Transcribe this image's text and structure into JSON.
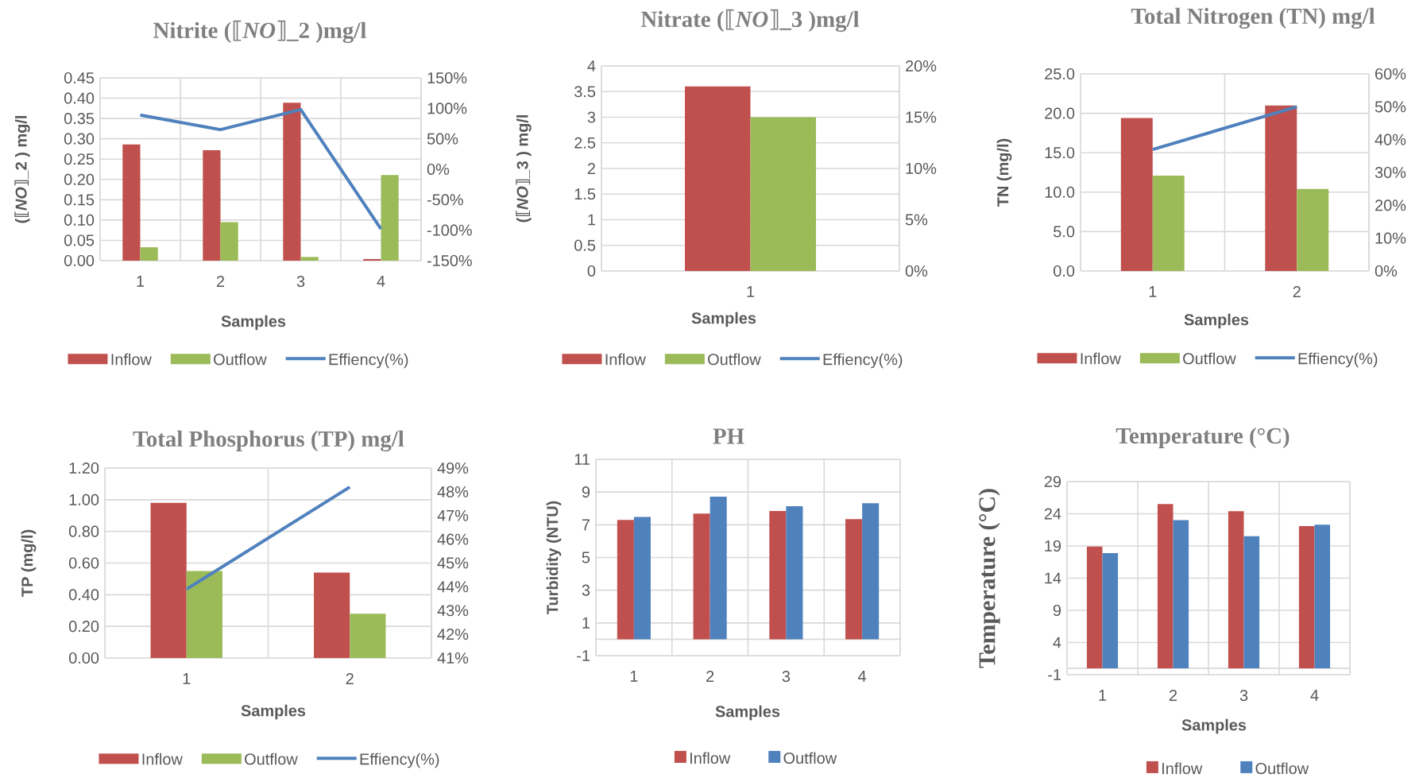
{
  "chart_data": [
    {
      "type": "bar",
      "title": "Nitrite (⟦*NO*⟧_2 )mg/l",
      "xlabel": "Samples",
      "ylabel": "(⟦*NO*⟧_2 ) mg/l",
      "categories": [
        "1",
        "2",
        "3",
        "4"
      ],
      "series": [
        {
          "name": "Inflow",
          "color": "#c0504d",
          "values": [
            0.286,
            0.272,
            0.389,
            0.004
          ]
        },
        {
          "name": "Outflow",
          "color": "#9bbb59",
          "values": [
            0.033,
            0.095,
            0.009,
            0.211
          ]
        },
        {
          "name": "Effiency(%)",
          "type": "line",
          "axis": "y2",
          "color": "#4f81bd",
          "values": [
            89,
            65,
            98,
            -98
          ]
        }
      ],
      "ylim": [
        0,
        0.45
      ],
      "yticks": [
        {
          "value": 0,
          "label": "0.00"
        },
        {
          "value": 0.05,
          "label": "0.05"
        },
        {
          "value": 0.1,
          "label": "0.10"
        },
        {
          "value": 0.15,
          "label": "0.15"
        },
        {
          "value": 0.2,
          "label": "0.20"
        },
        {
          "value": 0.25,
          "label": "0.25"
        },
        {
          "value": 0.3,
          "label": "0.30"
        },
        {
          "value": 0.35,
          "label": "0.35"
        },
        {
          "value": 0.4,
          "label": "0.40"
        },
        {
          "value": 0.45,
          "label": "0.45"
        }
      ],
      "y2lim": [
        -150,
        150
      ],
      "y2ticks": [
        {
          "value": -150,
          "label": "-150%"
        },
        {
          "value": -100,
          "label": "-100%"
        },
        {
          "value": -50,
          "label": "-50%"
        },
        {
          "value": 0,
          "label": "0%"
        },
        {
          "value": 50,
          "label": "50%"
        },
        {
          "value": 100,
          "label": "100%"
        },
        {
          "value": 150,
          "label": "150%"
        }
      ],
      "grid": true,
      "legend": "bottom"
    },
    {
      "type": "bar",
      "title": "Nitrate (⟦*NO*⟧_3 )mg/l",
      "xlabel": "Samples",
      "ylabel": "(⟦*NO*⟧_3 ) mg/l",
      "categories": [
        "1"
      ],
      "series": [
        {
          "name": "Inflow",
          "color": "#c0504d",
          "values": [
            3.6
          ]
        },
        {
          "name": "Outflow",
          "color": "#9bbb59",
          "values": [
            3.0
          ]
        },
        {
          "name": "Effiency(%)",
          "type": "line",
          "axis": "y2",
          "color": "#4f81bd",
          "values": [
            null
          ]
        }
      ],
      "ylim": [
        0,
        4
      ],
      "yticks": [
        0,
        0.5,
        1,
        1.5,
        2,
        2.5,
        3,
        3.5,
        4
      ],
      "y2lim": [
        0,
        20
      ],
      "y2ticks": [
        {
          "value": 0,
          "label": "0%"
        },
        {
          "value": 5,
          "label": "5%"
        },
        {
          "value": 10,
          "label": "10%"
        },
        {
          "value": 15,
          "label": "15%"
        },
        {
          "value": 20,
          "label": "20%"
        }
      ],
      "grid": true,
      "legend": "bottom"
    },
    {
      "type": "bar",
      "title": "Total Nitrogen (TN) mg/l",
      "xlabel": "Samples",
      "ylabel": "TN (mg/l)",
      "categories": [
        "1",
        "2"
      ],
      "series": [
        {
          "name": "Inflow",
          "color": "#c0504d",
          "values": [
            19.4,
            21.0
          ]
        },
        {
          "name": "Outflow",
          "color": "#9bbb59",
          "values": [
            12.1,
            10.4
          ]
        },
        {
          "name": "Effiency(%)",
          "type": "line",
          "axis": "y2",
          "color": "#4f81bd",
          "values": [
            37,
            50
          ]
        }
      ],
      "ylim": [
        0,
        25
      ],
      "yticks": [
        {
          "value": 0,
          "label": "0.0"
        },
        {
          "value": 5,
          "label": "5.0"
        },
        {
          "value": 10,
          "label": "10.0"
        },
        {
          "value": 15,
          "label": "15.0"
        },
        {
          "value": 20,
          "label": "20.0"
        },
        {
          "value": 25,
          "label": "25.0"
        }
      ],
      "y2lim": [
        0,
        60
      ],
      "y2ticks": [
        {
          "value": 0,
          "label": "0%"
        },
        {
          "value": 10,
          "label": "10%"
        },
        {
          "value": 20,
          "label": "20%"
        },
        {
          "value": 30,
          "label": "30%"
        },
        {
          "value": 40,
          "label": "40%"
        },
        {
          "value": 50,
          "label": "50%"
        },
        {
          "value": 60,
          "label": "60%"
        }
      ],
      "grid": true,
      "legend": "bottom"
    },
    {
      "type": "bar",
      "title": "Total Phosphorus (TP) mg/l",
      "xlabel": "Samples",
      "ylabel": "TP (mg/l)",
      "categories": [
        "1",
        "2"
      ],
      "series": [
        {
          "name": "Inflow",
          "color": "#c0504d",
          "values": [
            0.98,
            0.54
          ]
        },
        {
          "name": "Outflow",
          "color": "#9bbb59",
          "values": [
            0.55,
            0.28
          ]
        },
        {
          "name": "Effiency(%)",
          "type": "line",
          "axis": "y2",
          "color": "#4f81bd",
          "values": [
            43.9,
            48.2
          ]
        }
      ],
      "ylim": [
        0,
        1.2
      ],
      "yticks": [
        {
          "value": 0,
          "label": "0.00"
        },
        {
          "value": 0.2,
          "label": "0.20"
        },
        {
          "value": 0.4,
          "label": "0.40"
        },
        {
          "value": 0.6,
          "label": "0.60"
        },
        {
          "value": 0.8,
          "label": "0.80"
        },
        {
          "value": 1.0,
          "label": "1.00"
        },
        {
          "value": 1.2,
          "label": "1.20"
        }
      ],
      "y2lim": [
        41,
        49
      ],
      "y2ticks": [
        {
          "value": 41,
          "label": "41%"
        },
        {
          "value": 42,
          "label": "42%"
        },
        {
          "value": 43,
          "label": "43%"
        },
        {
          "value": 44,
          "label": "44%"
        },
        {
          "value": 45,
          "label": "45%"
        },
        {
          "value": 46,
          "label": "46%"
        },
        {
          "value": 47,
          "label": "47%"
        },
        {
          "value": 48,
          "label": "48%"
        },
        {
          "value": 49,
          "label": "49%"
        }
      ],
      "grid": true,
      "legend": "bottom"
    },
    {
      "type": "bar",
      "title": "PH",
      "xlabel": "Samples",
      "ylabel": "Turbidity (NTU)",
      "categories": [
        "1",
        "2",
        "3",
        "4"
      ],
      "series": [
        {
          "name": "Inflow",
          "color": "#c0504d",
          "values": [
            7.3,
            7.69,
            7.84,
            7.35
          ]
        },
        {
          "name": "Outflow",
          "color": "#4f81bd",
          "values": [
            7.48,
            8.72,
            8.13,
            8.31
          ]
        }
      ],
      "ylim": [
        -1,
        11
      ],
      "yticks": [
        -1,
        1,
        3,
        5,
        7,
        9,
        11
      ],
      "grid": true,
      "legend": "bottom"
    },
    {
      "type": "bar",
      "title": "Temperature (°C)",
      "xlabel": "Samples",
      "ylabel": "Temperature (°C)",
      "categories": [
        "1",
        "2",
        "3",
        "4"
      ],
      "series": [
        {
          "name": "Inflow",
          "color": "#c0504d",
          "values": [
            18.9,
            25.5,
            24.4,
            22.1
          ]
        },
        {
          "name": "Outflow",
          "color": "#4f81bd",
          "values": [
            17.9,
            23.0,
            20.5,
            22.3
          ]
        }
      ],
      "ylim": [
        -1,
        29
      ],
      "yticks": [
        -1,
        4,
        9,
        14,
        19,
        24,
        29
      ],
      "grid": true,
      "legend": "bottom"
    }
  ]
}
